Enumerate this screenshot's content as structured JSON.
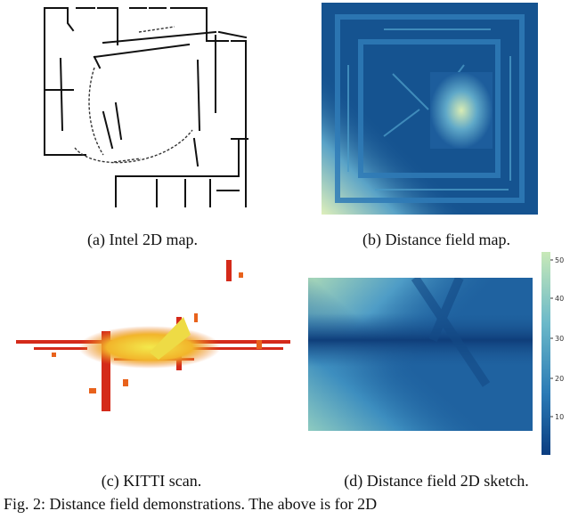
{
  "panels": {
    "a": {
      "caption": "(a) Intel 2D map."
    },
    "b": {
      "caption": "(b) Distance field map."
    },
    "c": {
      "caption": "(c) KITTI scan."
    },
    "d": {
      "caption": "(d) Distance field 2D sketch.",
      "colorbar_ticks": [
        "50",
        "40",
        "30",
        "20",
        "10"
      ]
    }
  },
  "figure_caption": "Fig. 2: Distance field demonstrations. The above is for 2D"
}
